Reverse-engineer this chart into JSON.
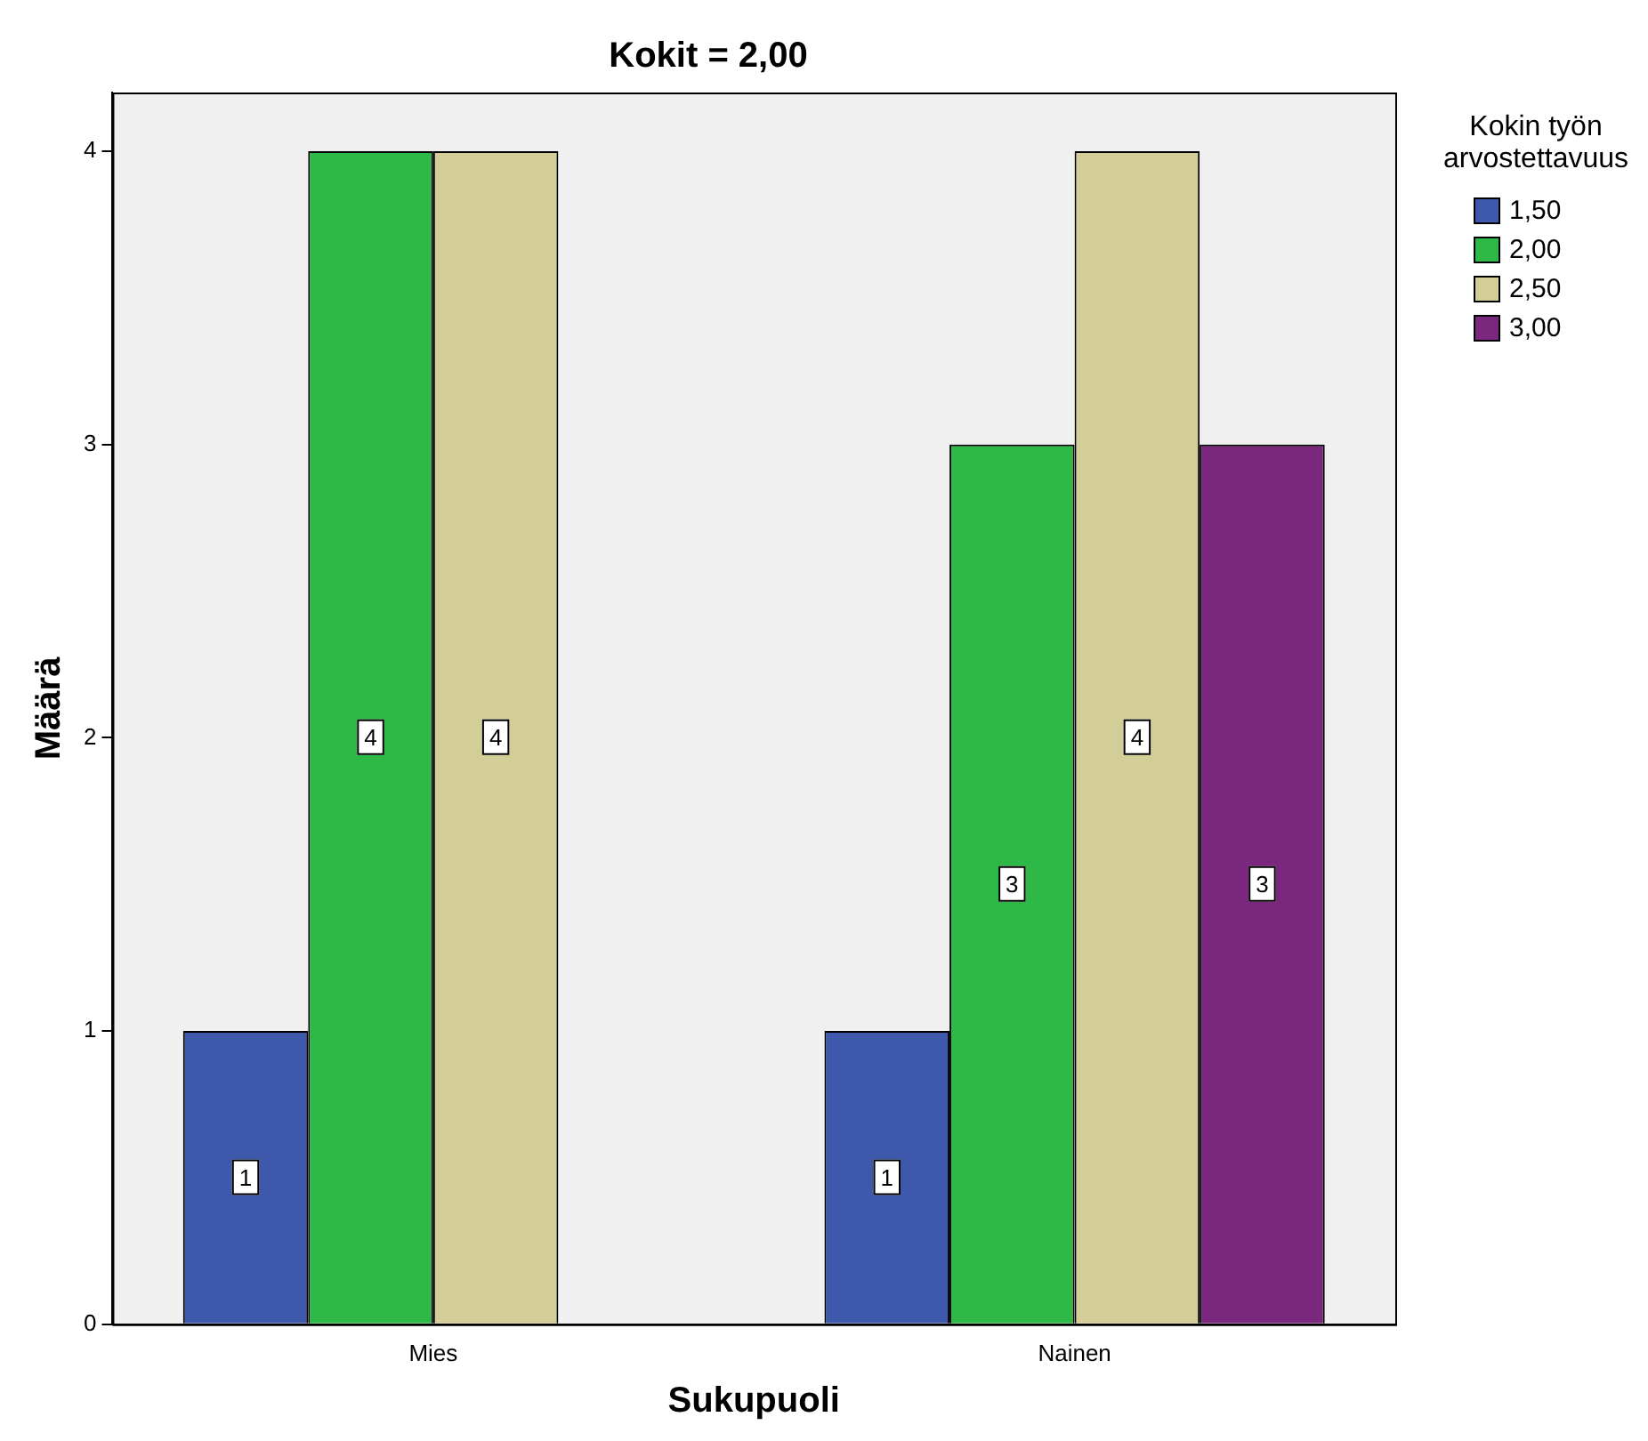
{
  "chart_data": {
    "type": "bar",
    "title": "Kokit = 2,00",
    "xlabel": "Sukupuoli",
    "ylabel": "Määrä",
    "legend_title": "Kokin työn arvostettavuus",
    "categories": [
      "Mies",
      "Nainen"
    ],
    "series": [
      {
        "name": "1,50",
        "color": "#3e58ac",
        "values": [
          1,
          1
        ]
      },
      {
        "name": "2,00",
        "color": "#2eb848",
        "values": [
          4,
          3
        ]
      },
      {
        "name": "2,50",
        "color": "#d3ce97",
        "values": [
          4,
          4
        ]
      },
      {
        "name": "3,00",
        "color": "#7a287e",
        "values": [
          null,
          3
        ]
      }
    ],
    "ylim": [
      0,
      4.2
    ],
    "yticks": [
      0,
      1,
      2,
      3,
      4
    ],
    "grid": false,
    "legend": "top right",
    "data_labels": true
  }
}
